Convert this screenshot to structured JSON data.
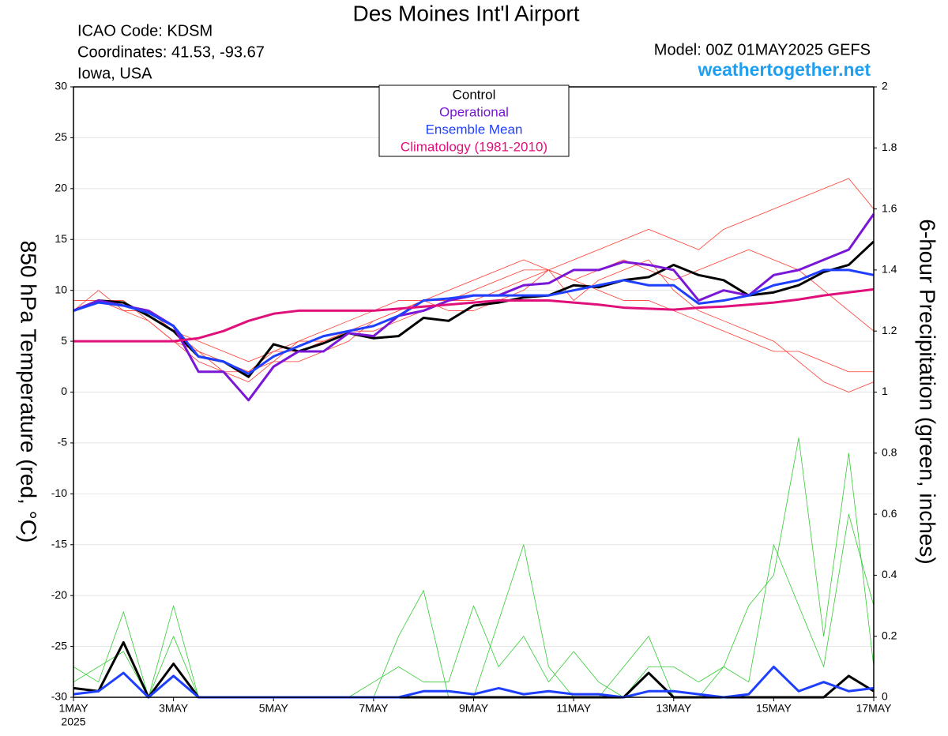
{
  "chart_data": {
    "type": "line",
    "title": "Des Moines Int'l Airport",
    "icao": "ICAO Code: KDSM",
    "coordinates": "Coordinates: 41.53, -93.67",
    "location": "Iowa, USA",
    "model": "Model: 00Z 01MAY2025 GEFS",
    "source": "weathertogether.net",
    "y_label": "850 hPa Temperature (red, °C)",
    "y2_label": "6-hour Precipitation (green, inches)",
    "year_label": "2025",
    "x": [
      0,
      0.5,
      1,
      1.5,
      2,
      2.5,
      3,
      3.5,
      4,
      4.5,
      5,
      5.5,
      6,
      6.5,
      7,
      7.5,
      8,
      8.5,
      9,
      9.5,
      10,
      10.5,
      11,
      11.5,
      12,
      12.5,
      13,
      13.5,
      14,
      14.5,
      15,
      15.5,
      16
    ],
    "xlim": [
      0,
      16
    ],
    "xticks": [
      {
        "value": 0,
        "label": "1MAY"
      },
      {
        "value": 2,
        "label": "3MAY"
      },
      {
        "value": 4,
        "label": "5MAY"
      },
      {
        "value": 6,
        "label": "7MAY"
      },
      {
        "value": 8,
        "label": "9MAY"
      },
      {
        "value": 10,
        "label": "11MAY"
      },
      {
        "value": 12,
        "label": "13MAY"
      },
      {
        "value": 14,
        "label": "15MAY"
      },
      {
        "value": 16,
        "label": "17MAY"
      }
    ],
    "ylim": [
      -30,
      30
    ],
    "yticks": [
      -30,
      -25,
      -20,
      -15,
      -10,
      -5,
      0,
      5,
      10,
      15,
      20,
      25,
      30
    ],
    "y2lim": [
      0,
      2
    ],
    "y2ticks": [
      0,
      0.2,
      0.4,
      0.6,
      0.8,
      1,
      1.2,
      1.4,
      1.6,
      1.8,
      2
    ],
    "members": [
      {
        "color": "#ff3b30",
        "values": [
          8,
          10,
          8,
          7,
          5,
          4,
          2,
          2,
          4,
          4,
          5,
          6,
          6,
          7,
          8,
          9,
          9,
          10,
          11,
          12,
          13,
          14,
          15,
          16,
          15,
          14,
          16,
          17,
          18,
          19,
          20,
          21,
          18
        ]
      },
      {
        "color": "#ff3b30",
        "values": [
          8,
          9,
          9,
          7,
          5,
          3,
          2,
          1,
          3,
          3,
          4,
          5,
          7,
          8,
          9,
          8,
          8,
          9,
          10,
          12,
          9,
          11,
          12,
          13,
          10,
          8,
          7,
          6,
          5,
          3,
          1,
          0,
          1
        ]
      },
      {
        "color": "#ff3b30",
        "values": [
          9,
          9,
          8,
          8,
          6,
          4,
          3,
          2,
          3,
          5,
          6,
          7,
          8,
          9,
          9,
          10,
          11,
          12,
          13,
          12,
          11,
          12,
          13,
          12,
          11,
          12,
          13,
          14,
          13,
          12,
          10,
          8,
          6
        ]
      },
      {
        "color": "#ff3b30",
        "values": [
          8,
          9,
          8,
          8,
          6,
          5,
          4,
          3,
          4,
          5,
          5,
          6,
          7,
          8,
          9,
          9,
          10,
          11,
          12,
          12,
          11,
          10,
          9,
          9,
          8,
          7,
          6,
          5,
          4,
          4,
          3,
          2,
          2
        ]
      }
    ],
    "precip_members": [
      {
        "color": "#33cc33",
        "axis": "y2",
        "values": [
          0.1,
          0.05,
          0.28,
          0,
          0.3,
          0,
          0,
          0,
          0,
          0,
          0,
          0,
          0,
          0.2,
          0.35,
          0,
          0,
          0.25,
          0.5,
          0.1,
          0,
          0,
          0.1,
          0.2,
          0,
          0,
          0.1,
          0.3,
          0.4,
          0.85,
          0.2,
          0.8,
          0.1
        ]
      },
      {
        "color": "#33cc33",
        "axis": "y2",
        "values": [
          0.05,
          0.1,
          0.15,
          0,
          0.2,
          0,
          0,
          0,
          0,
          0,
          0,
          0,
          0.05,
          0.1,
          0.05,
          0.05,
          0.3,
          0.1,
          0.2,
          0.05,
          0.15,
          0.05,
          0,
          0.1,
          0.1,
          0.05,
          0.1,
          0.05,
          0.5,
          0.3,
          0.1,
          0.6,
          0.3
        ]
      }
    ],
    "precip_series": [
      {
        "color": "#000000",
        "axis": "y2",
        "values": [
          0.03,
          0.02,
          0.18,
          0,
          0.11,
          0,
          0,
          0,
          0,
          0,
          0,
          0,
          0,
          0,
          0,
          0,
          0,
          0,
          0,
          0,
          0,
          0,
          0,
          0.08,
          0,
          0,
          0,
          0,
          0,
          0,
          0,
          0.07,
          0.02
        ]
      },
      {
        "color": "#1f3fff",
        "axis": "y2",
        "values": [
          0.01,
          0.02,
          0.08,
          0,
          0.07,
          0,
          0,
          0,
          0,
          0,
          0,
          0,
          0,
          0,
          0.02,
          0.02,
          0.01,
          0.03,
          0.01,
          0.02,
          0.01,
          0.01,
          0,
          0.02,
          0.02,
          0.01,
          0,
          0.01,
          0.1,
          0.02,
          0.05,
          0.02,
          0.03
        ]
      }
    ],
    "series": [
      {
        "name": "Control",
        "color": "#000000",
        "values": [
          8,
          9,
          8.8,
          7.5,
          6,
          3.5,
          3,
          1.5,
          4.7,
          4,
          4.8,
          5.8,
          5.3,
          5.5,
          7.3,
          7,
          8.5,
          8.8,
          9.3,
          9.5,
          10.5,
          10.3,
          11,
          11.3,
          12.5,
          11.5,
          11,
          9.5,
          9.8,
          10.5,
          11.8,
          12.5,
          14.8
        ]
      },
      {
        "name": "Operational",
        "color": "#7a16d6",
        "values": [
          8,
          9,
          8.5,
          8,
          6.5,
          2,
          2,
          -0.8,
          2.5,
          4,
          4,
          5.8,
          5.5,
          7.5,
          8,
          9,
          9.5,
          9.5,
          10.5,
          10.7,
          12,
          12,
          12.8,
          12.5,
          12,
          9,
          10,
          9.5,
          11.5,
          12,
          13,
          14,
          17.5
        ]
      },
      {
        "name": "Ensemble Mean",
        "color": "#1f3fff",
        "values": [
          8,
          8.8,
          8.5,
          7.8,
          6.5,
          3.5,
          3,
          1.8,
          3.5,
          4.5,
          5.5,
          6,
          6.5,
          7.5,
          9,
          9.2,
          9.5,
          9.5,
          9.5,
          9.5,
          10,
          10.5,
          11,
          10.5,
          10.5,
          8.7,
          9,
          9.5,
          10.5,
          11,
          12,
          12,
          11.5
        ]
      },
      {
        "name": "Climatology (1981-2010)",
        "color": "#e0107a",
        "values": [
          5,
          5,
          5,
          5,
          5,
          5.3,
          6,
          7,
          7.7,
          8,
          8,
          8,
          8,
          8.2,
          8.4,
          8.6,
          8.8,
          9,
          9,
          9,
          8.8,
          8.6,
          8.3,
          8.2,
          8.1,
          8.3,
          8.4,
          8.6,
          8.8,
          9.1,
          9.5,
          9.8,
          10.1
        ]
      }
    ]
  }
}
